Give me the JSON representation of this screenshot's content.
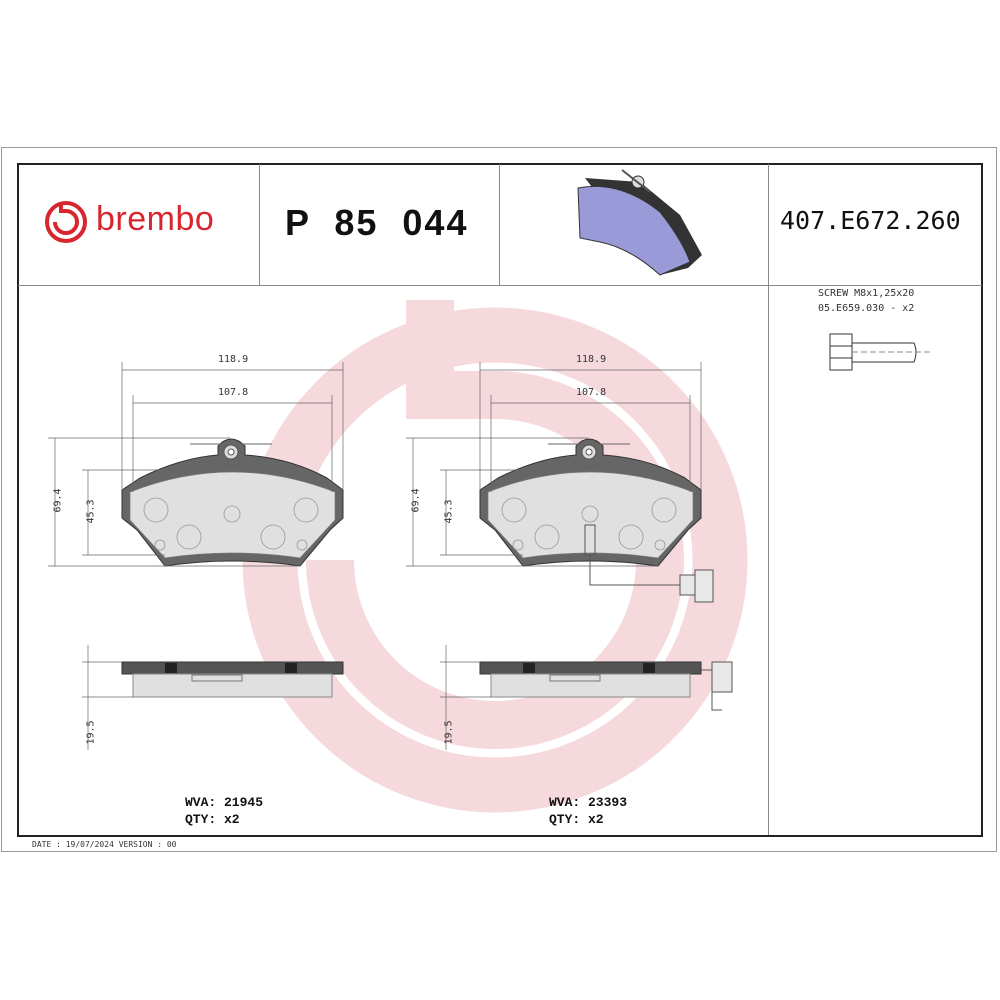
{
  "header": {
    "brand": "brembo",
    "part_number": "P 85 044",
    "reference_code": "407.E672.260"
  },
  "accessory": {
    "line1": "SCREW M8x1,25x20",
    "line2": "05.E659.030 - x2"
  },
  "drawings": [
    {
      "dim_width_overall": "118.9",
      "dim_width_inner": "107.8",
      "dim_height_overall": "69.4",
      "dim_height_inner": "45.3",
      "dim_thickness": "19.5",
      "wva": "WVA: 21945",
      "qty": "QTY: x2",
      "wear_sensor": false
    },
    {
      "dim_width_overall": "118.9",
      "dim_width_inner": "107.8",
      "dim_height_overall": "69.4",
      "dim_height_inner": "45.3",
      "dim_thickness": "19.5",
      "wva": "WVA: 23393",
      "qty": "QTY: x2",
      "wear_sensor": true
    }
  ],
  "footer": {
    "date_version": "DATE : 19/07/2024 VERSION : 00"
  },
  "colors": {
    "brand_red": "#d8262e",
    "watermark": "#f6d6da",
    "pad_preview": "#9a9ad8"
  }
}
